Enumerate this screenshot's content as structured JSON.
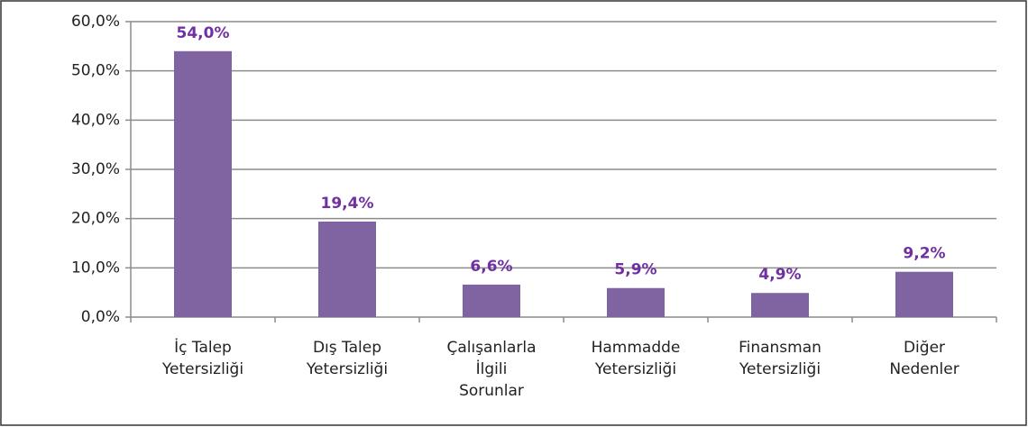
{
  "chart_data": {
    "type": "bar",
    "categories": [
      [
        "İç Talep",
        "Yetersizliği"
      ],
      [
        "Dış Talep",
        "Yetersizliği"
      ],
      [
        "Çalışanlarla",
        "İlgili",
        "Sorunlar"
      ],
      [
        "Hammadde",
        "Yetersizliği"
      ],
      [
        "Finansman",
        "Yetersizliği"
      ],
      [
        "Diğer",
        "Nedenler"
      ]
    ],
    "values": [
      54.0,
      19.4,
      6.6,
      5.9,
      4.9,
      9.2
    ],
    "value_labels": [
      "54,0%",
      "19,4%",
      "6,6%",
      "5,9%",
      "4,9%",
      "9,2%"
    ],
    "color": "#8064a2",
    "label_color": "#7030a0",
    "ylim": [
      0,
      60
    ],
    "yticks": [
      {
        "value": 0,
        "label": "0,0%"
      },
      {
        "value": 10,
        "label": "10,0%"
      },
      {
        "value": 20,
        "label": "20,0%"
      },
      {
        "value": 30,
        "label": "30,0%"
      },
      {
        "value": 40,
        "label": "40,0%"
      },
      {
        "value": 50,
        "label": "50,0%"
      },
      {
        "value": 60,
        "label": "60,0%"
      }
    ],
    "grid": true
  }
}
